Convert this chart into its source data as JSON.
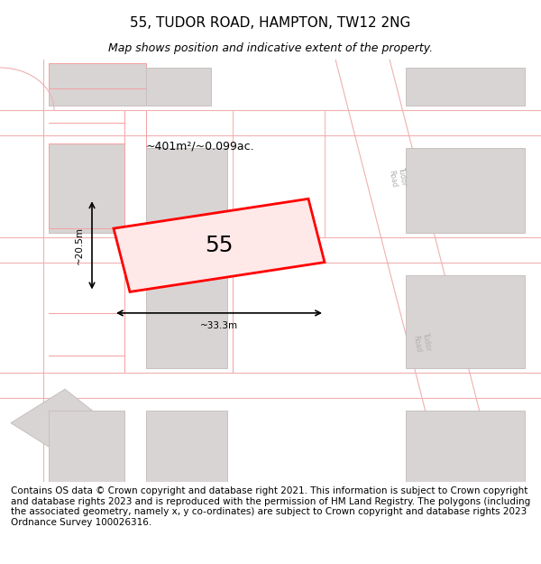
{
  "title": "55, TUDOR ROAD, HAMPTON, TW12 2NG",
  "subtitle": "Map shows position and indicative extent of the property.",
  "area_label": "~401m²/~0.099ac.",
  "number_label": "55",
  "width_label": "~33.3m",
  "height_label": "~20.5m",
  "footer_text": "Contains OS data © Crown copyright and database right 2021. This information is subject to Crown copyright and database rights 2023 and is reproduced with the permission of HM Land Registry. The polygons (including the associated geometry, namely x, y co-ordinates) are subject to Crown copyright and database rights 2023 Ordnance Survey 100026316.",
  "bg_color": "#f5f5f5",
  "map_bg": "#f0eeee",
  "road_color": "#ffffff",
  "building_fill": "#d8d8d8",
  "building_edge": "#cccccc",
  "street_line_color": "#f0b0b0",
  "highlight_color": "#ff0000",
  "highlight_fill": "#ffe8e8",
  "title_fontsize": 11,
  "subtitle_fontsize": 9,
  "footer_fontsize": 7.5
}
